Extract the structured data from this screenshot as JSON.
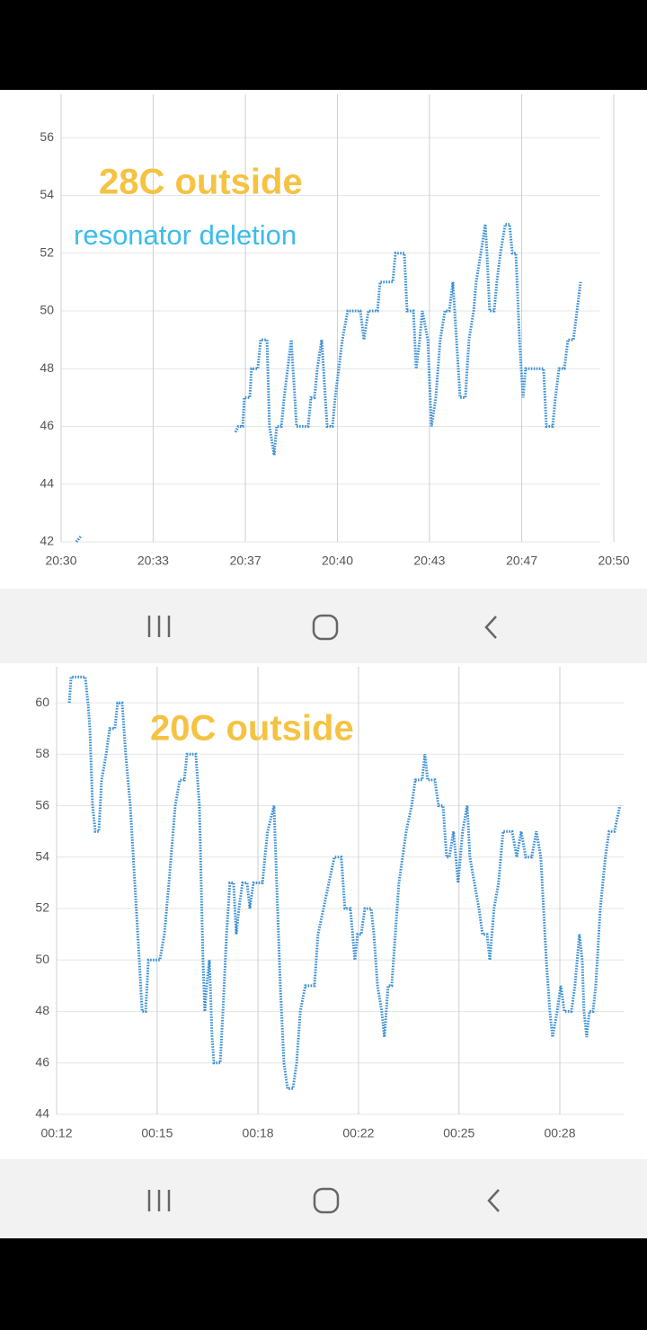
{
  "chart_data": [
    {
      "type": "line",
      "color": "#3a8fd6",
      "annotations": [
        "28C outside",
        "resonator deletion"
      ],
      "xlim": [
        1230,
        1250
      ],
      "ylim": [
        42,
        57.5
      ],
      "xticks": [
        {
          "value": 1230,
          "label": "20:30"
        },
        {
          "value": 1233.33,
          "label": "20:33"
        },
        {
          "value": 1236.67,
          "label": "20:37"
        },
        {
          "value": 1240,
          "label": "20:40"
        },
        {
          "value": 1243.33,
          "label": "20:43"
        },
        {
          "value": 1246.67,
          "label": "20:47"
        },
        {
          "value": 1250,
          "label": "20:50"
        }
      ],
      "yticks": [
        42,
        44,
        46,
        48,
        50,
        52,
        54,
        56
      ],
      "grid": true,
      "x": [
        1230.55,
        1230.72,
        null,
        1236.31,
        1236.41,
        1236.57,
        1236.63,
        1236.83,
        1236.89,
        1237.12,
        1237.22,
        1237.45,
        1237.54,
        1237.71,
        1237.8,
        1237.97,
        1238.07,
        1238.2,
        1238.33,
        1238.46,
        1238.52,
        1238.94,
        1239.04,
        1239.17,
        1239.27,
        1239.43,
        1239.56,
        1239.63,
        1239.82,
        1239.92,
        1240.05,
        1240.18,
        1240.37,
        1240.83,
        1240.96,
        1241.12,
        1241.45,
        1241.54,
        1242.0,
        1242.1,
        1242.42,
        1242.52,
        1242.75,
        1242.85,
        1242.98,
        1243.07,
        1243.27,
        1243.4,
        1243.56,
        1243.72,
        1243.89,
        1244.05,
        1244.18,
        1244.31,
        1244.44,
        1244.63,
        1244.76,
        1244.93,
        1245.02,
        1245.19,
        1245.35,
        1245.41,
        1245.51,
        1245.67,
        1245.77,
        1245.9,
        1246.07,
        1246.23,
        1246.33,
        1246.46,
        1246.59,
        1246.65,
        1246.72,
        1246.81,
        1247.46,
        1247.56,
        1247.79,
        1247.89,
        1248.02,
        1248.21,
        1248.34,
        1248.54,
        1248.67,
        1248.8
      ],
      "values": [
        42,
        42.2,
        null,
        45.8,
        46,
        46,
        47,
        47,
        48,
        48,
        49,
        49,
        46,
        45,
        46,
        46,
        47,
        48,
        49,
        47,
        46,
        46,
        47,
        47,
        48,
        49,
        47,
        46,
        46,
        47,
        48,
        49,
        50,
        50,
        49,
        50,
        50,
        51,
        51,
        52,
        52,
        50,
        50,
        48,
        49,
        50,
        49,
        46,
        47,
        49,
        50,
        50,
        51,
        49,
        47,
        47,
        49,
        50,
        51,
        52,
        53,
        52,
        50,
        50,
        51,
        52,
        53,
        53,
        52,
        52,
        49,
        48,
        47,
        48,
        48,
        46,
        46,
        47,
        48,
        48,
        49,
        49,
        50,
        51
      ]
    },
    {
      "type": "line",
      "color": "#3a8fd6",
      "annotations": [
        "20C outside"
      ],
      "xlim": [
        12,
        31.26
      ],
      "ylim": [
        44,
        61.4
      ],
      "xticks": [
        {
          "value": 12,
          "label": "00:12"
        },
        {
          "value": 15.33,
          "label": "00:15"
        },
        {
          "value": 18.67,
          "label": "00:18"
        },
        {
          "value": 22,
          "label": "00:22"
        },
        {
          "value": 25.33,
          "label": "00:25"
        },
        {
          "value": 28.67,
          "label": "00:28"
        }
      ],
      "yticks": [
        44,
        46,
        48,
        50,
        52,
        54,
        56,
        58,
        60
      ],
      "grid": true,
      "x": [
        12.42,
        12.48,
        12.95,
        13.04,
        13.1,
        13.19,
        13.28,
        13.4,
        13.49,
        13.64,
        13.76,
        13.93,
        14.02,
        14.17,
        14.29,
        14.44,
        14.59,
        14.74,
        14.83,
        14.95,
        15.04,
        15.42,
        15.57,
        15.72,
        15.93,
        16.08,
        16.23,
        16.32,
        16.61,
        16.73,
        16.85,
        16.91,
        16.97,
        17.06,
        17.15,
        17.21,
        17.42,
        17.51,
        17.63,
        17.74,
        17.86,
        17.95,
        18.04,
        18.16,
        18.31,
        18.4,
        18.52,
        18.82,
        18.9,
        18.99,
        19.2,
        19.29,
        19.41,
        19.53,
        19.65,
        19.83,
        19.95,
        20.07,
        20.24,
        20.54,
        20.66,
        20.84,
        21.02,
        21.2,
        21.43,
        21.55,
        21.73,
        21.88,
        21.97,
        22.09,
        22.21,
        22.42,
        22.51,
        22.63,
        22.77,
        22.86,
        22.98,
        23.1,
        23.22,
        23.34,
        23.46,
        23.58,
        23.76,
        23.88,
        24.11,
        24.2,
        24.29,
        24.53,
        24.65,
        24.8,
        24.92,
        25.01,
        25.15,
        25.3,
        25.45,
        25.6,
        25.69,
        25.84,
        25.99,
        26.11,
        26.26,
        26.35,
        26.49,
        26.64,
        26.79,
        26.94,
        27.09,
        27.24,
        27.39,
        27.54,
        27.74,
        27.89,
        28.04,
        28.13,
        28.22,
        28.34,
        28.43,
        28.58,
        28.7,
        28.82,
        29.05,
        29.17,
        29.32,
        29.41,
        29.47,
        29.56,
        29.65,
        29.77,
        29.86,
        30.01,
        30.18,
        30.3,
        30.48,
        30.66
      ],
      "values": [
        60,
        61,
        61,
        60,
        59,
        56,
        55,
        55,
        57,
        58,
        59,
        59,
        60,
        60,
        58,
        56,
        53,
        50,
        48,
        48,
        50,
        50,
        51,
        53,
        56,
        57,
        57,
        58,
        58,
        56,
        50,
        48,
        49,
        50,
        47,
        46,
        46,
        48,
        51,
        53,
        53,
        51,
        52,
        53,
        53,
        52,
        53,
        53,
        54,
        55,
        56,
        53,
        49,
        46,
        45,
        45,
        46,
        48,
        49,
        49,
        51,
        52,
        53,
        54,
        54,
        52,
        52,
        50,
        51,
        51,
        52,
        52,
        51,
        49,
        48,
        47,
        49,
        49,
        51,
        53,
        54,
        55,
        56,
        57,
        57,
        58,
        57,
        57,
        56,
        56,
        54,
        54,
        55,
        53,
        55,
        56,
        54,
        53,
        52,
        51,
        51,
        50,
        52,
        53,
        55,
        55,
        55,
        54,
        55,
        54,
        54,
        55,
        54,
        52,
        50,
        48,
        47,
        48,
        49,
        48,
        48,
        49,
        51,
        50,
        48,
        47,
        48,
        48,
        49,
        52,
        54,
        55,
        55,
        56
      ]
    }
  ]
}
